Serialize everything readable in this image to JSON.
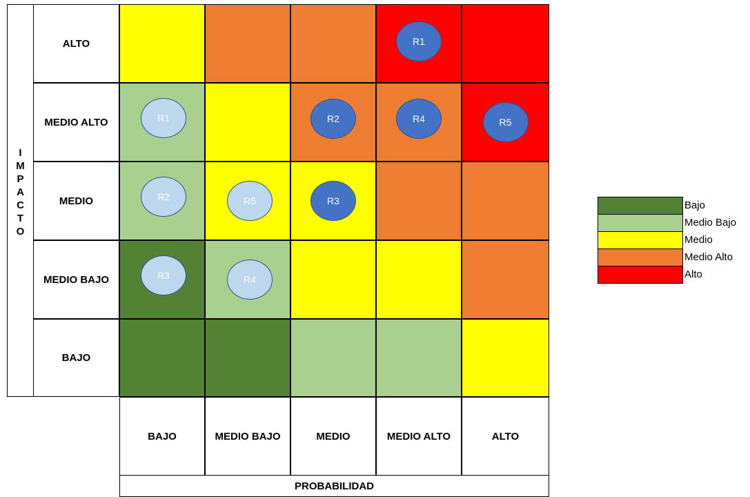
{
  "chart_data": {
    "type": "heatmap",
    "title": "",
    "xlabel": "PROBABILIDAD",
    "ylabel": "IMPACTO",
    "x_categories": [
      "BAJO",
      "MEDIO BAJO",
      "MEDIO",
      "MEDIO ALTO",
      "ALTO"
    ],
    "y_categories": [
      "ALTO",
      "MEDIO ALTO",
      "MEDIO",
      "MEDIO BAJO",
      "BAJO"
    ],
    "cell_levels": [
      [
        "Medio",
        "Medio Alto",
        "Medio Alto",
        "Alto",
        "Alto"
      ],
      [
        "Medio Bajo",
        "Medio",
        "Medio Alto",
        "Medio Alto",
        "Alto"
      ],
      [
        "Medio Bajo",
        "Medio",
        "Medio",
        "Medio Alto",
        "Medio Alto"
      ],
      [
        "Bajo",
        "Medio Bajo",
        "Medio",
        "Medio",
        "Medio Alto"
      ],
      [
        "Bajo",
        "Bajo",
        "Medio Bajo",
        "Medio Bajo",
        "Medio"
      ]
    ],
    "legend": [
      {
        "label": "Bajo",
        "color": "#548235"
      },
      {
        "label": "Medio Bajo",
        "color": "#a9d08e"
      },
      {
        "label": "Medio",
        "color": "#ffff00"
      },
      {
        "label": "Medio Alto",
        "color": "#ed7d31"
      },
      {
        "label": "Alto",
        "color": "#ff0000"
      }
    ],
    "markers": [
      {
        "label": "R1",
        "probabilidad": "MEDIO ALTO",
        "impacto": "ALTO",
        "style": "dark"
      },
      {
        "label": "R2",
        "probabilidad": "MEDIO",
        "impacto": "MEDIO ALTO",
        "style": "dark"
      },
      {
        "label": "R4",
        "probabilidad": "MEDIO ALTO",
        "impacto": "MEDIO ALTO",
        "style": "dark"
      },
      {
        "label": "R5",
        "probabilidad": "ALTO",
        "impacto": "MEDIO ALTO",
        "style": "dark"
      },
      {
        "label": "R3",
        "probabilidad": "MEDIO",
        "impacto": "MEDIO",
        "style": "dark"
      },
      {
        "label": "R1",
        "probabilidad": "BAJO",
        "impacto": "MEDIO ALTO",
        "style": "light"
      },
      {
        "label": "R2",
        "probabilidad": "BAJO",
        "impacto": "MEDIO",
        "style": "light"
      },
      {
        "label": "R5",
        "probabilidad": "MEDIO BAJO",
        "impacto": "MEDIO",
        "style": "light"
      },
      {
        "label": "R3",
        "probabilidad": "BAJO",
        "impacto": "MEDIO BAJO",
        "style": "light"
      },
      {
        "label": "R4",
        "probabilidad": "MEDIO BAJO",
        "impacto": "MEDIO BAJO",
        "style": "light"
      }
    ],
    "marker_colors": {
      "dark": "#4472c4",
      "light": "#bdd7ee"
    }
  }
}
